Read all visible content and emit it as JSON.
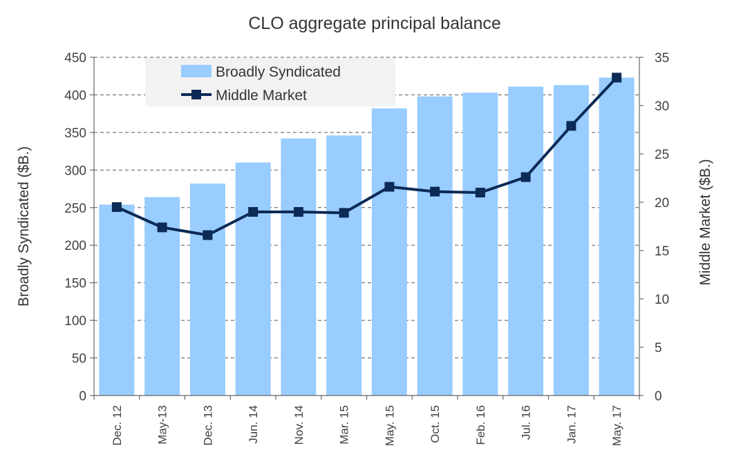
{
  "chart_data": {
    "type": "bar",
    "title": "CLO aggregate principal balance",
    "categories": [
      "Dec. 12",
      "May-13",
      "Dec. 13",
      "Jun. 14",
      "Nov. 14",
      "Mar. 15",
      "May. 15",
      "Oct. 15",
      "Feb. 16",
      "Jul. 16",
      "Jan. 17",
      "May. 17"
    ],
    "series": [
      {
        "name": "Broadly Syndicated",
        "type": "bar",
        "axis": "left",
        "color": "#99CCFF",
        "values": [
          254,
          264,
          282,
          310,
          342,
          346,
          382,
          398,
          403,
          411,
          413,
          423
        ]
      },
      {
        "name": "Middle Market",
        "type": "line",
        "axis": "right",
        "color": "#0B2A55",
        "marker": "square",
        "values": [
          19.5,
          17.4,
          16.6,
          19.0,
          19.0,
          18.9,
          21.6,
          21.1,
          21.0,
          22.6,
          27.9,
          32.9
        ]
      }
    ],
    "ylabel": "Broadly Syndicated  ($B.)",
    "y2label": "Middle Market ($B.)",
    "ylim": [
      0,
      450
    ],
    "y2lim": [
      0,
      35
    ],
    "yticks": [
      "0",
      "50",
      "100",
      "150",
      "200",
      "250",
      "300",
      "350",
      "400",
      "450"
    ],
    "y2ticks": [
      "0",
      "5",
      "10",
      "15",
      "20",
      "25",
      "30",
      "35"
    ],
    "grid": true,
    "legend": "top-left"
  }
}
